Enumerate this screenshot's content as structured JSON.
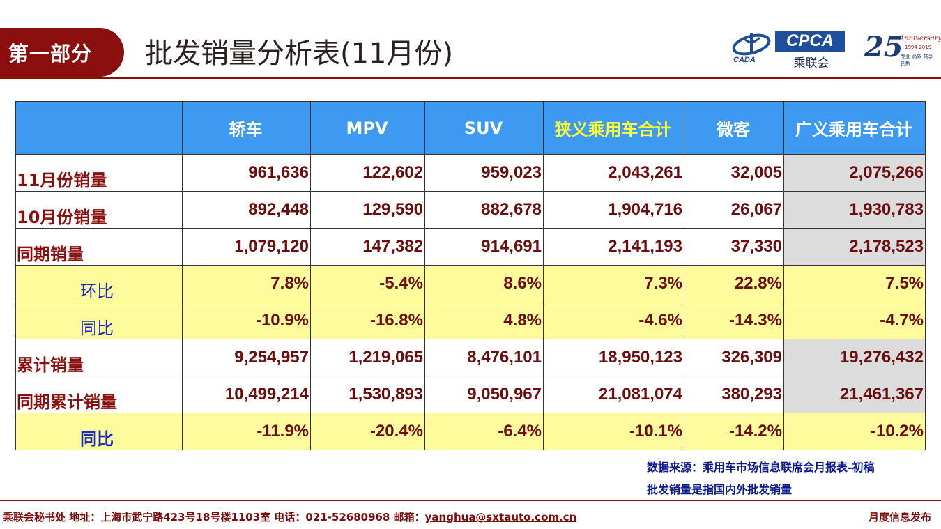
{
  "header": {
    "section_label": "第一部分",
    "title": "批发销量分析表(11月份)",
    "logos": {
      "cada_text": "CADA",
      "cpca_text": "CPCA",
      "cpca_sub": "乘联会",
      "anniv_number": "25",
      "anniv_word": "Anniversary",
      "anniv_years": "1994-2019",
      "anniv_slogan": "专业 高效 共享 创新"
    }
  },
  "table": {
    "columns": [
      "",
      "轿车",
      "MPV",
      "SUV",
      "狭义乘用车合计",
      "微客",
      "广义乘用车合计"
    ],
    "rows": [
      {
        "label": "11月份销量",
        "values": [
          "961,636",
          "122,602",
          "959,023",
          "2,043,261",
          "32,005",
          "2,075,266"
        ]
      },
      {
        "label": "10月份销量",
        "values": [
          "892,448",
          "129,590",
          "882,678",
          "1,904,716",
          "26,067",
          "1,930,783"
        ]
      },
      {
        "label": "同期销量",
        "values": [
          "1,079,120",
          "147,382",
          "914,691",
          "2,141,193",
          "37,330",
          "2,178,523"
        ]
      },
      {
        "label": "环比",
        "values": [
          "7.8%",
          "-5.4%",
          "8.6%",
          "7.3%",
          "22.8%",
          "7.5%"
        ]
      },
      {
        "label": "同比",
        "values": [
          "-10.9%",
          "-16.8%",
          "4.8%",
          "-4.6%",
          "-14.3%",
          "-4.7%"
        ]
      },
      {
        "label": "累计销量",
        "values": [
          "9,254,957",
          "1,219,065",
          "8,476,101",
          "18,950,123",
          "326,309",
          "19,276,432"
        ]
      },
      {
        "label": "同期累计销量",
        "values": [
          "10,499,214",
          "1,530,893",
          "9,050,967",
          "21,081,074",
          "380,293",
          "21,461,367"
        ]
      },
      {
        "label": "同比",
        "values": [
          "-11.9%",
          "-20.4%",
          "-6.4%",
          "-10.1%",
          "-14.2%",
          "-10.2%"
        ]
      }
    ]
  },
  "notes": {
    "source": "数据来源：乘用车市场信息联席会月报表-初稿",
    "definition": "批发销量是指国内外批发销量"
  },
  "footer": {
    "contact_prefix": "乘联会秘书处  地址：上海市武宁路423号18号楼1103室  电话：021-52680968  邮箱：",
    "email": "yanghua@sxtauto.com.cn",
    "right": "月度信息发布"
  },
  "colors": {
    "brand_red": "#8b0f0f",
    "header_blue": "#3d9af0",
    "ratio_yellow": "#fdfb9c",
    "total_grey": "#dcdcdc"
  }
}
